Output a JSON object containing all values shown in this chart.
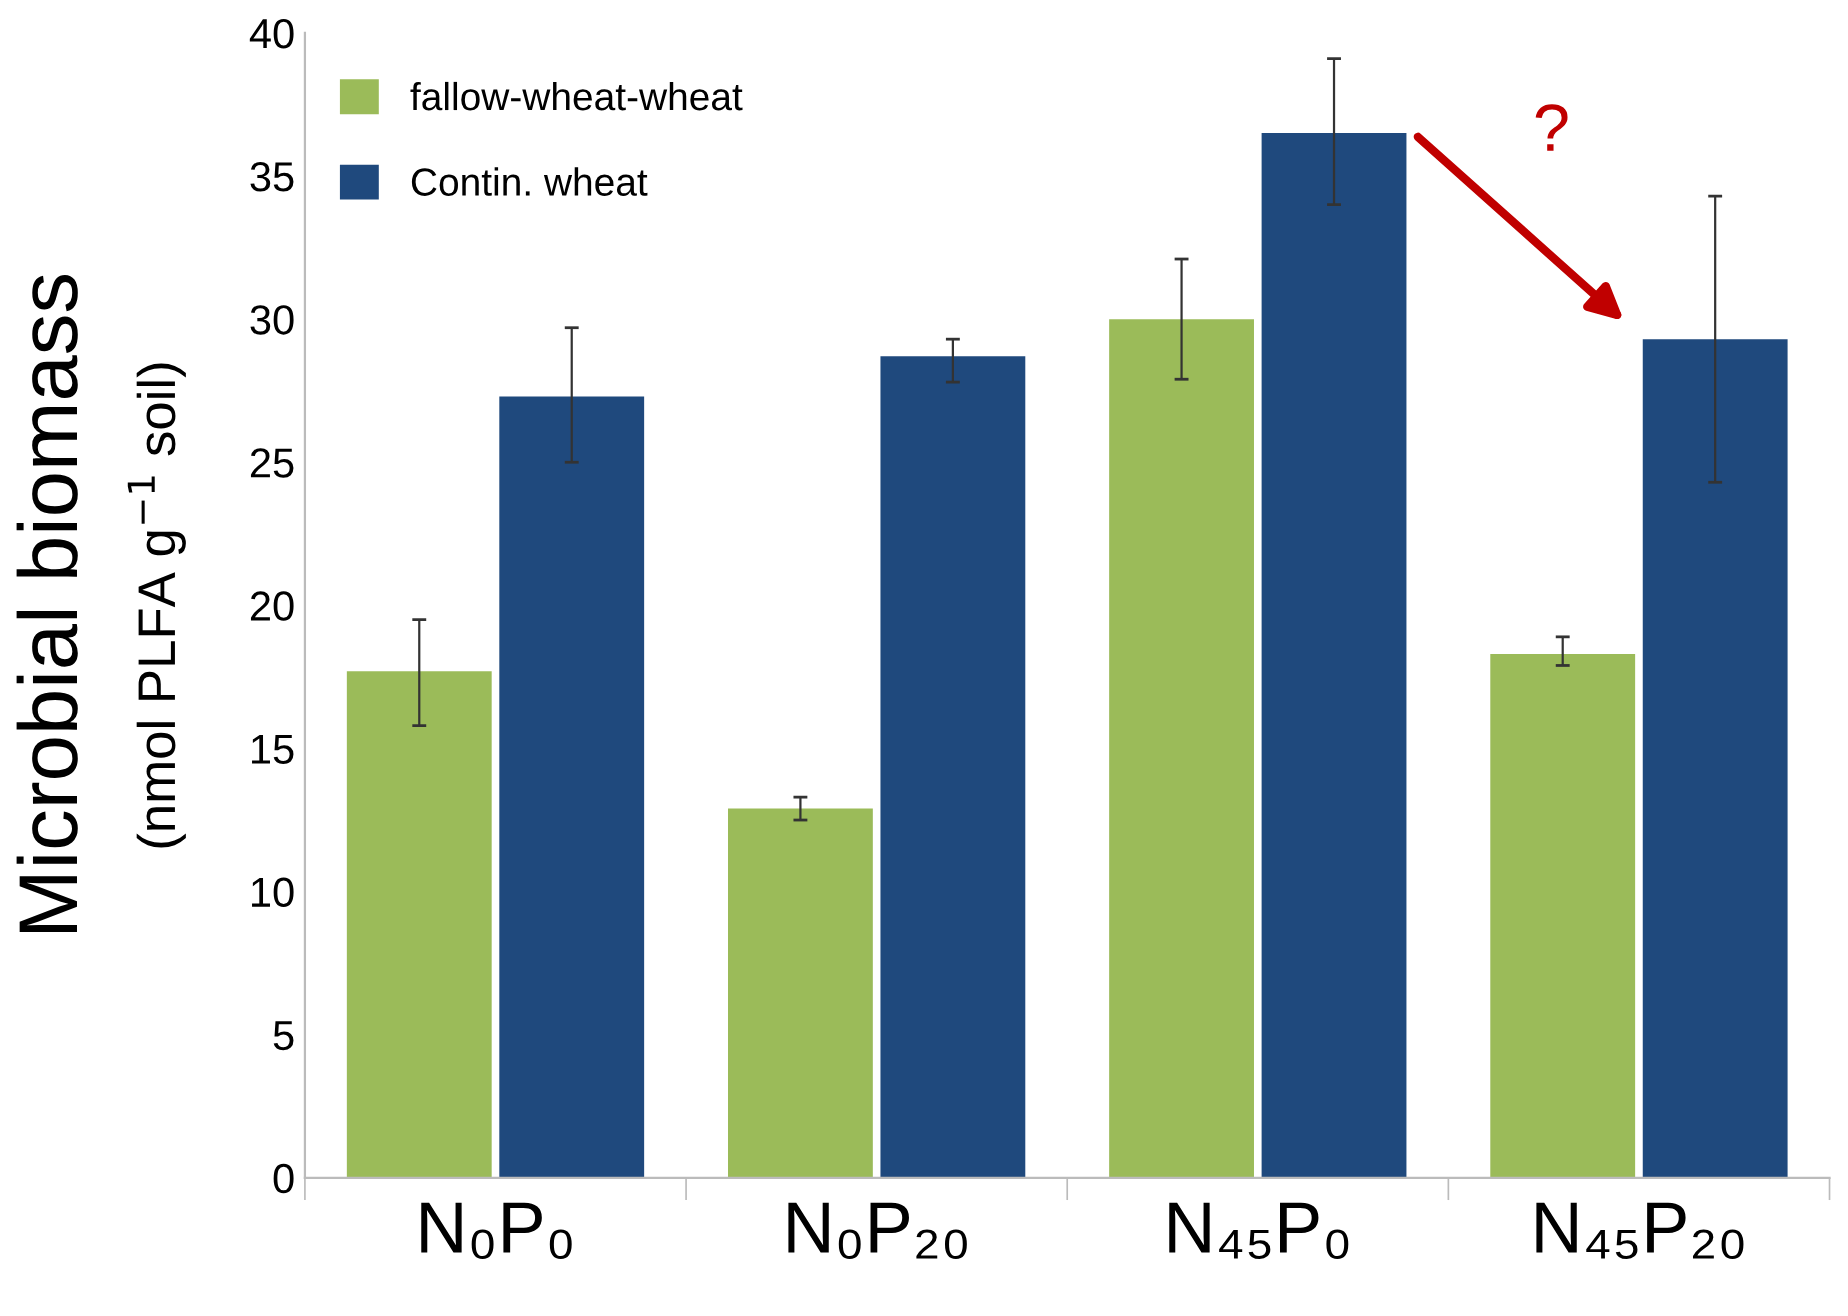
{
  "chart_data": {
    "type": "bar",
    "ylabel": "Microbial biomass\n(nmol PLFA g$^{−1}$ soil)",
    "categories": [
      "N₀P₀",
      "N₀P₂₀",
      "N₄₅P₀",
      "N₄₅P₂₀"
    ],
    "series": [
      {
        "name": "fallow-wheat-wheat",
        "color": "#9bbb59",
        "values": [
          17.7,
          12.9,
          30.0,
          18.3
        ],
        "errors": [
          [
            15.8,
            19.5
          ],
          [
            12.5,
            13.3
          ],
          [
            27.9,
            32.1
          ],
          [
            17.9,
            18.9
          ]
        ]
      },
      {
        "name": "Contin. wheat",
        "color": "#1f497d",
        "values": [
          27.3,
          28.7,
          36.5,
          29.3
        ],
        "errors": [
          [
            25.0,
            29.7
          ],
          [
            27.8,
            29.3
          ],
          [
            34.0,
            39.1
          ],
          [
            24.3,
            34.3
          ]
        ]
      }
    ],
    "ylim": [
      0,
      40
    ],
    "yticks": [
      0,
      5,
      10,
      15,
      20,
      25,
      30,
      35,
      40
    ],
    "annotations": [
      "?"
    ],
    "legend": "top left",
    "grid": false
  }
}
